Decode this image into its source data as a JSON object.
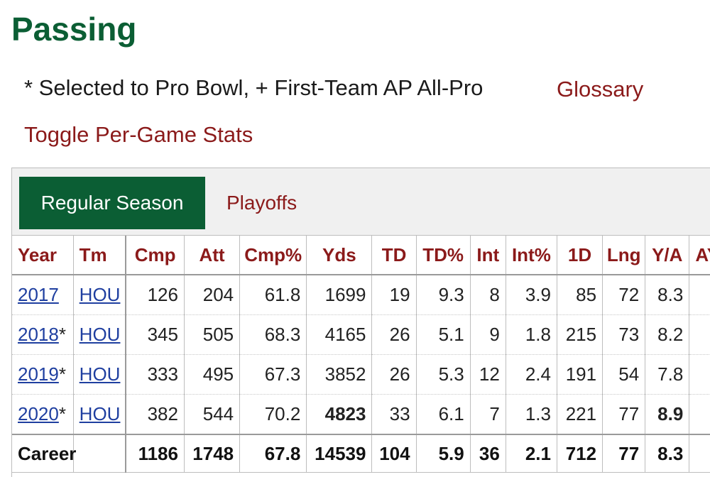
{
  "heading": "Passing",
  "legend": "* Selected to Pro Bowl, + First-Team AP All-Pro",
  "glossary": "Glossary",
  "toggle": "Toggle Per-Game Stats",
  "tabs": {
    "active": "Regular Season",
    "other": "Playoffs"
  },
  "colors": {
    "brand_green": "#0b5e34",
    "link_red": "#8b1a1a",
    "link_blue": "#1f3fa0"
  },
  "table": {
    "headers": [
      "Year",
      "Tm",
      "Cmp",
      "Att",
      "Cmp%",
      "Yds",
      "TD",
      "TD%",
      "Int",
      "Int%",
      "1D",
      "Lng",
      "Y/A",
      "AY/A"
    ],
    "rows": [
      {
        "year": "2017",
        "mark": "",
        "team": "HOU",
        "cmp": "126",
        "att": "204",
        "cmp_pct": "61.8",
        "yds": "1699",
        "td": "19",
        "td_pct": "9.3",
        "int": "8",
        "int_pct": "3.9",
        "first_downs": "85",
        "lng": "72",
        "ya": "8.3"
      },
      {
        "year": "2018",
        "mark": "*",
        "team": "HOU",
        "cmp": "345",
        "att": "505",
        "cmp_pct": "68.3",
        "yds": "4165",
        "td": "26",
        "td_pct": "5.1",
        "int": "9",
        "int_pct": "1.8",
        "first_downs": "215",
        "lng": "73",
        "ya": "8.2"
      },
      {
        "year": "2019",
        "mark": "*",
        "team": "HOU",
        "cmp": "333",
        "att": "495",
        "cmp_pct": "67.3",
        "yds": "3852",
        "td": "26",
        "td_pct": "5.3",
        "int": "12",
        "int_pct": "2.4",
        "first_downs": "191",
        "lng": "54",
        "ya": "7.8"
      },
      {
        "year": "2020",
        "mark": "*",
        "team": "HOU",
        "cmp": "382",
        "att": "544",
        "cmp_pct": "70.2",
        "yds": "4823",
        "td": "33",
        "td_pct": "6.1",
        "int": "7",
        "int_pct": "1.3",
        "first_downs": "221",
        "lng": "77",
        "ya": "8.9"
      }
    ],
    "career": {
      "label": "Career",
      "cmp": "1186",
      "att": "1748",
      "cmp_pct": "67.8",
      "yds": "14539",
      "td": "104",
      "td_pct": "5.9",
      "int": "36",
      "int_pct": "2.1",
      "first_downs": "712",
      "lng": "77",
      "ya": "8.3"
    }
  }
}
